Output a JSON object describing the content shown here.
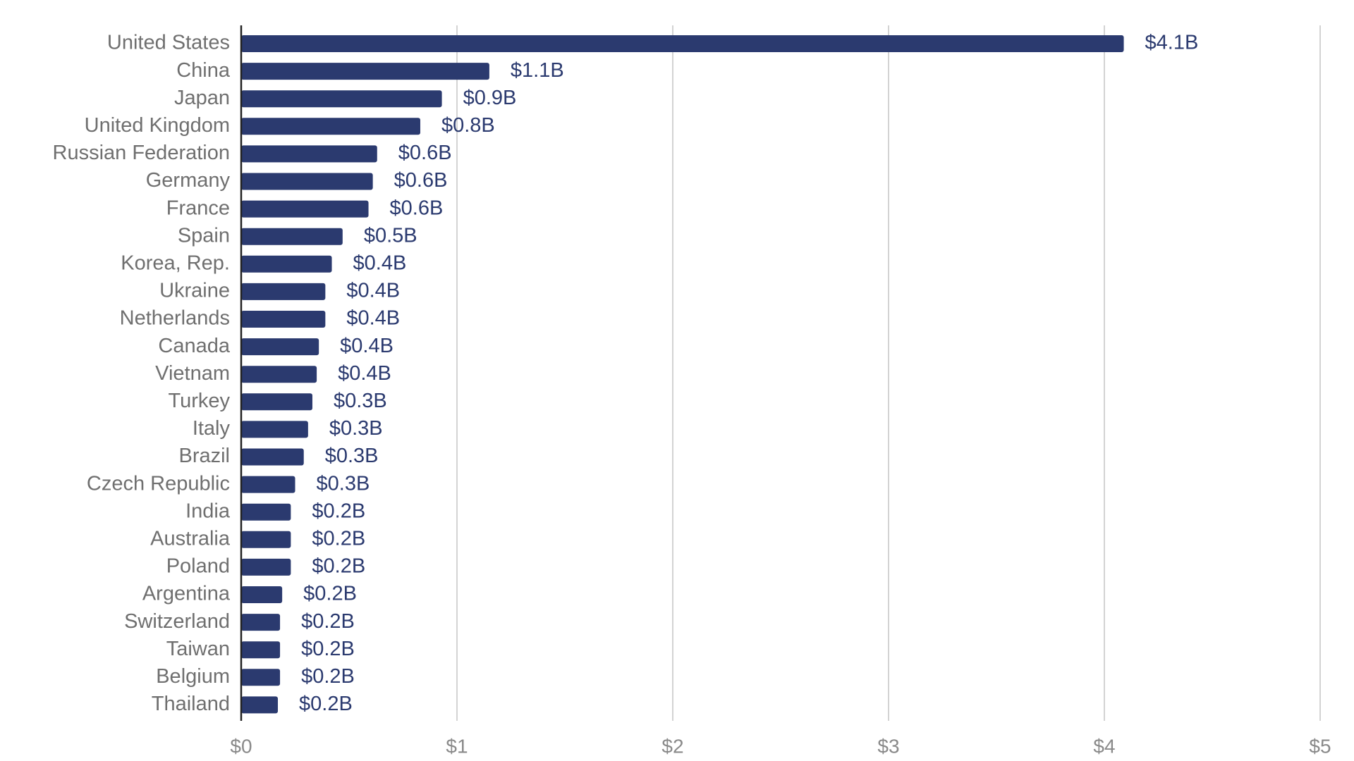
{
  "chart_data": {
    "type": "bar",
    "orientation": "horizontal",
    "title": "",
    "xlabel": "",
    "ylabel": "",
    "xlim": [
      0,
      5
    ],
    "grid": true,
    "categories": [
      "United States",
      "China",
      "Japan",
      "United Kingdom",
      "Russian Federation",
      "Germany",
      "France",
      "Spain",
      "Korea, Rep.",
      "Ukraine",
      "Netherlands",
      "Canada",
      "Vietnam",
      "Turkey",
      "Italy",
      "Brazil",
      "Czech Republic",
      "India",
      "Australia",
      "Poland",
      "Argentina",
      "Switzerland",
      "Taiwan",
      "Belgium",
      "Thailand"
    ],
    "values": [
      4.09,
      1.15,
      0.93,
      0.83,
      0.63,
      0.61,
      0.59,
      0.47,
      0.42,
      0.39,
      0.39,
      0.36,
      0.35,
      0.33,
      0.31,
      0.29,
      0.25,
      0.23,
      0.23,
      0.23,
      0.19,
      0.18,
      0.18,
      0.18,
      0.17
    ],
    "value_labels": [
      "$4.1B",
      "$1.1B",
      "$0.9B",
      "$0.8B",
      "$0.6B",
      "$0.6B",
      "$0.6B",
      "$0.5B",
      "$0.4B",
      "$0.4B",
      "$0.4B",
      "$0.4B",
      "$0.4B",
      "$0.3B",
      "$0.3B",
      "$0.3B",
      "$0.3B",
      "$0.2B",
      "$0.2B",
      "$0.2B",
      "$0.2B",
      "$0.2B",
      "$0.2B",
      "$0.2B",
      "$0.2B"
    ],
    "x_ticks": [
      0,
      1,
      2,
      3,
      4,
      5
    ],
    "x_tick_labels": [
      "$0",
      "$1",
      "$2",
      "$3",
      "$4",
      "$5"
    ],
    "colors": {
      "bar": "#2b3a6f",
      "value_label": "#2b3a6f",
      "category_label": "#6f6f6f",
      "tick_label": "#8a8a8a",
      "grid": "#d3d3d3",
      "axis": "#222222"
    }
  }
}
